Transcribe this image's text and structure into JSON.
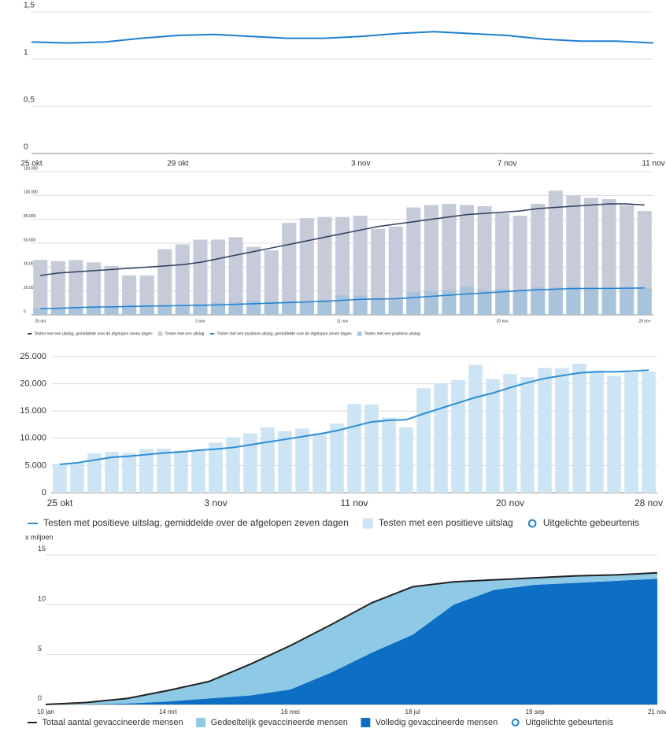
{
  "chart_data": [
    {
      "type": "line",
      "categories": [
        "25 okt",
        null,
        null,
        null,
        "29 okt",
        null,
        null,
        null,
        null,
        "3 nov",
        null,
        null,
        null,
        "7 nov",
        null,
        null,
        null,
        "11 nov"
      ],
      "series": [
        {
          "type": "line",
          "color": "#1f7fd0",
          "values": [
            1.18,
            1.17,
            1.18,
            1.22,
            1.25,
            1.26,
            1.24,
            1.22,
            1.22,
            1.24,
            1.27,
            1.29,
            1.27,
            1.25,
            1.21,
            1.19,
            1.19,
            1.17
          ]
        }
      ],
      "ylim": [
        0,
        1.5
      ],
      "yticks": [
        0,
        {
          "value": 0.5,
          "label": "0,5"
        },
        1,
        {
          "value": 1.5,
          "label": "1,5"
        }
      ],
      "grid": true
    },
    {
      "type": "bar",
      "categories": [
        "25 okt",
        null,
        null,
        null,
        null,
        null,
        null,
        null,
        null,
        "3 nov",
        null,
        null,
        null,
        null,
        null,
        null,
        null,
        "11 nov",
        null,
        null,
        null,
        null,
        null,
        null,
        null,
        null,
        "20 nov",
        null,
        null,
        null,
        null,
        null,
        null,
        null,
        "28 nov"
      ],
      "series": [
        {
          "name": "Testen met een uitslag, gemiddelde over de afgelopen zeven dagen",
          "type": "line",
          "color": "#2d3e5e",
          "values": [
            33000,
            35000,
            36000,
            37000,
            38000,
            39000,
            40000,
            41000,
            42000,
            44000,
            47000,
            50000,
            53000,
            56000,
            59000,
            62000,
            65000,
            68000,
            71000,
            74000,
            76000,
            78000,
            80000,
            82000,
            84000,
            85000,
            86000,
            87000,
            89000,
            90000,
            91000,
            92000,
            93000,
            93000,
            92000
          ]
        },
        {
          "name": "Testen met een uitslag",
          "type": "bar",
          "color": "#c6cbd9",
          "values": [
            46000,
            45000,
            46000,
            44000,
            41000,
            33000,
            33000,
            55000,
            59000,
            63000,
            63000,
            65000,
            57000,
            54000,
            77000,
            81000,
            82000,
            82000,
            83000,
            72000,
            74000,
            90000,
            92000,
            93000,
            92000,
            91000,
            85000,
            83000,
            93000,
            104000,
            100000,
            98000,
            97000,
            92000,
            87000
          ]
        },
        {
          "name": "Testen met een positieve uitslag, gemiddelde over de afgelopen zeven dagen",
          "type": "line",
          "color": "#1f7fd0",
          "values": [
            5200,
            5500,
            6000,
            6500,
            6700,
            7000,
            7300,
            7500,
            7800,
            8000,
            8300,
            8800,
            9300,
            9800,
            10300,
            10800,
            11400,
            12200,
            13000,
            13300,
            13400,
            14500,
            15500,
            16500,
            17500,
            18300,
            19300,
            20200,
            21000,
            21500,
            22000,
            22200,
            22200,
            22300,
            22500
          ]
        },
        {
          "name": "Testen met een positieve uitslag",
          "type": "bar",
          "color": "#a9c3dc",
          "values": [
            5300,
            5500,
            7200,
            7500,
            7300,
            8000,
            8100,
            7700,
            7800,
            9200,
            10200,
            10900,
            12000,
            11300,
            11800,
            10900,
            12700,
            16300,
            16200,
            13800,
            12000,
            19200,
            20100,
            20700,
            23500,
            20900,
            21800,
            21200,
            22900,
            22900,
            23700,
            22400,
            21400,
            22000,
            22200
          ]
        }
      ],
      "ylim": [
        0,
        120000
      ],
      "yticks": [
        0,
        {
          "value": 20000,
          "label": "20.000"
        },
        {
          "value": 40000,
          "label": "40.000"
        },
        {
          "value": 60000,
          "label": "60.000"
        },
        {
          "value": 80000,
          "label": "80.000"
        },
        {
          "value": 100000,
          "label": "100.000"
        },
        {
          "value": 120000,
          "label": "120.000"
        }
      ],
      "grid": true
    },
    {
      "type": "bar",
      "categories": [
        "25 okt",
        null,
        null,
        null,
        null,
        null,
        null,
        null,
        null,
        "3 nov",
        null,
        null,
        null,
        null,
        null,
        null,
        null,
        "11 nov",
        null,
        null,
        null,
        null,
        null,
        null,
        null,
        null,
        "20 nov",
        null,
        null,
        null,
        null,
        null,
        null,
        null,
        "28 nov"
      ],
      "series": [
        {
          "name": "Testen met positieve uitslag, gemiddelde over de afgelopen zeven dagen",
          "type": "line",
          "color": "#2b8fd6",
          "values": [
            5200,
            5500,
            6000,
            6500,
            6700,
            7000,
            7300,
            7500,
            7800,
            8000,
            8300,
            8800,
            9300,
            9800,
            10300,
            10800,
            11400,
            12200,
            13000,
            13300,
            13400,
            14500,
            15500,
            16500,
            17500,
            18300,
            19300,
            20200,
            21000,
            21500,
            22000,
            22200,
            22200,
            22300,
            22500
          ]
        },
        {
          "name": "Testen met een positieve uitslag",
          "type": "bar",
          "color": "#cde4f5",
          "values": [
            5300,
            5500,
            7200,
            7500,
            7300,
            8000,
            8100,
            7700,
            7800,
            9200,
            10200,
            10900,
            12000,
            11300,
            11800,
            10900,
            12700,
            16300,
            16200,
            13800,
            12000,
            19200,
            20100,
            20700,
            23500,
            20900,
            21800,
            21200,
            22900,
            22900,
            23700,
            22400,
            21400,
            22000,
            22200
          ]
        }
      ],
      "events_legend": "Uitgelichte gebeurtenis",
      "ylim": [
        0,
        25000
      ],
      "yticks": [
        0,
        {
          "value": 5000,
          "label": "5.000"
        },
        {
          "value": 10000,
          "label": "10.000"
        },
        {
          "value": 15000,
          "label": "15.000"
        },
        {
          "value": 20000,
          "label": "20.000"
        },
        {
          "value": 25000,
          "label": "25.000"
        }
      ],
      "grid": true
    },
    {
      "type": "area",
      "stacked": true,
      "y_unit": "x miljoen",
      "categories": [
        "10 jan",
        null,
        null,
        "14 mrt",
        null,
        null,
        "16 mei",
        null,
        null,
        "18 jul",
        null,
        null,
        "19 sep",
        null,
        null,
        "21 nov"
      ],
      "series": [
        {
          "name": "Totaal aantal gevaccineerde mensen",
          "type": "line",
          "color": "#222222",
          "values": [
            0,
            0.2,
            0.6,
            1.4,
            2.3,
            4.0,
            5.9,
            8.0,
            10.2,
            11.8,
            12.3,
            12.5,
            12.7,
            12.9,
            13.0,
            13.2
          ]
        },
        {
          "name": "Gedeeltelijk gevaccineerde mensen",
          "type": "area",
          "color": "#8ecae6",
          "values": [
            0,
            0.2,
            0.5,
            1.1,
            1.7,
            3.1,
            4.4,
            4.8,
            5.0,
            4.8,
            2.3,
            1.0,
            0.7,
            0.7,
            0.6,
            0.6
          ]
        },
        {
          "name": "Volledig gevaccineerde mensen",
          "type": "area",
          "color": "#0d6fc4",
          "values": [
            0,
            0,
            0.1,
            0.3,
            0.6,
            0.9,
            1.5,
            3.2,
            5.2,
            7.0,
            10.0,
            11.5,
            12.0,
            12.2,
            12.4,
            12.6
          ]
        }
      ],
      "events_legend": "Uitgelichte gebeurtenis",
      "ylim": [
        0,
        15
      ],
      "yticks": [
        0,
        5,
        10,
        15
      ],
      "grid": true
    }
  ]
}
